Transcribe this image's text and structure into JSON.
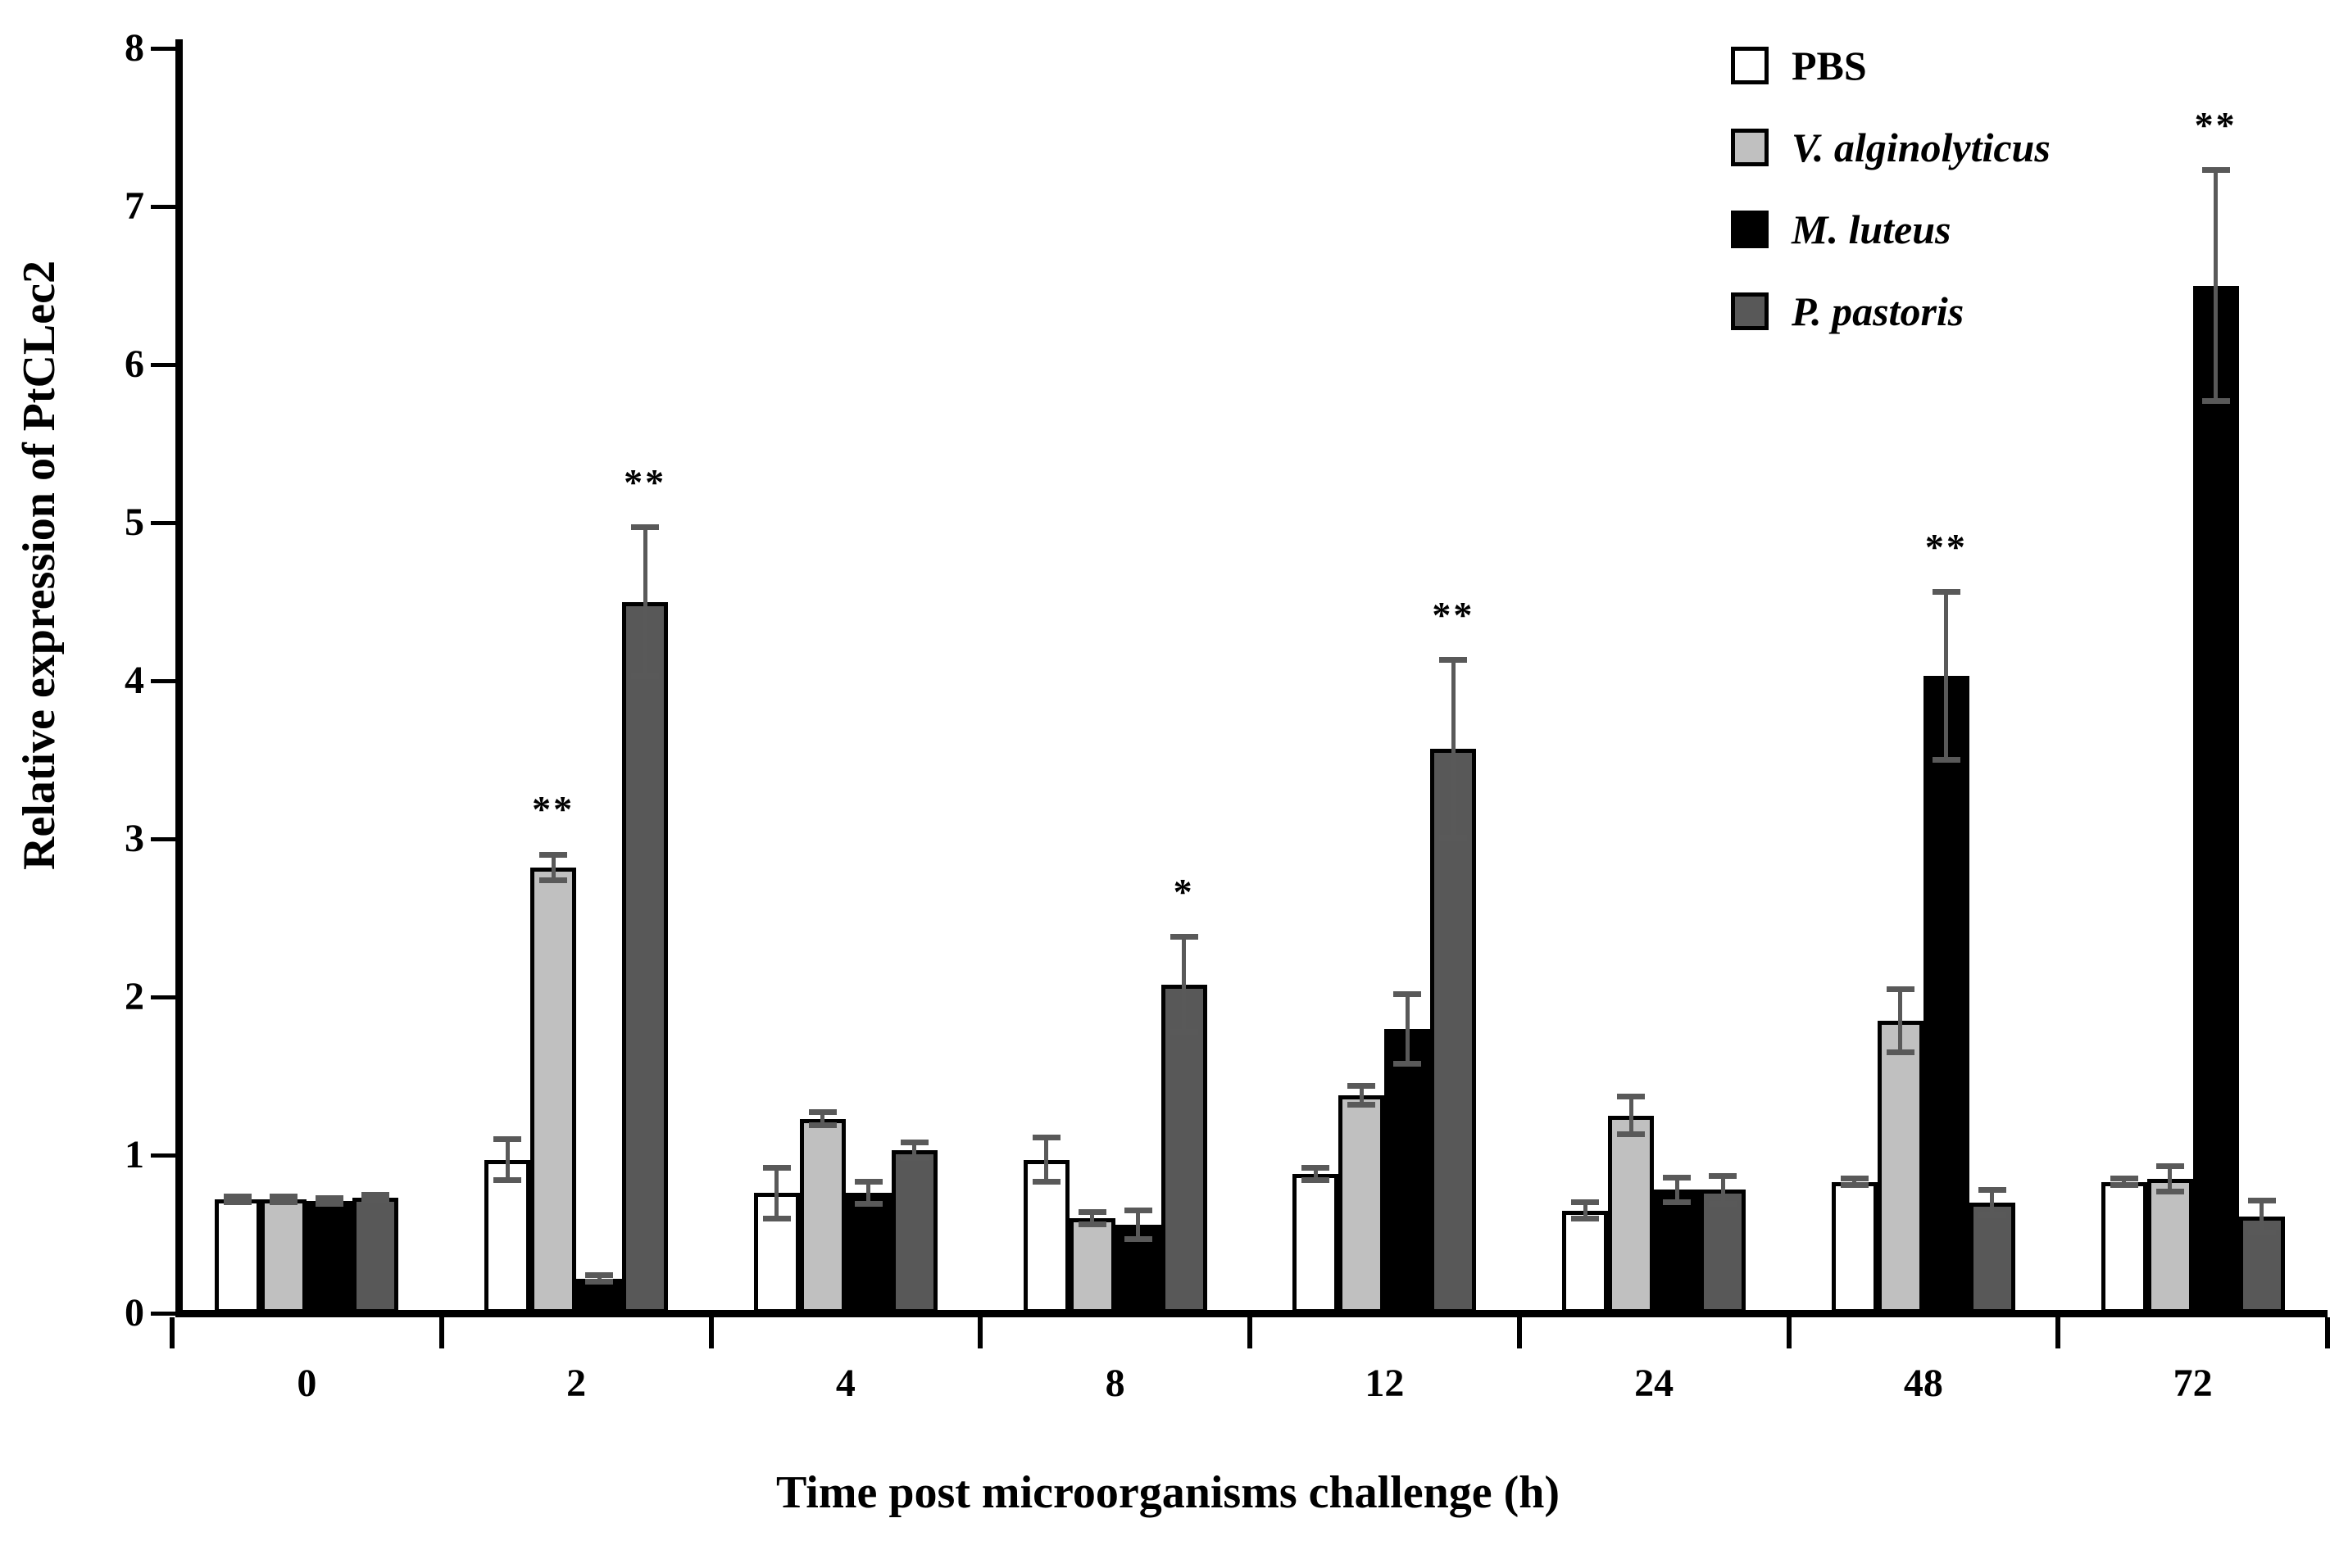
{
  "chart_data": {
    "type": "bar",
    "title": "",
    "xlabel": "Time post microorganisms challenge (h)",
    "ylabel": "Relative expression of PtCLec2",
    "categories": [
      "0",
      "2",
      "4",
      "8",
      "12",
      "24",
      "48",
      "72"
    ],
    "ylim": [
      0,
      8
    ],
    "ytick_step": 1,
    "grid": false,
    "legend_position": "top-right",
    "bar_border_color": "#000000",
    "error_bar_color": "#595959",
    "series": [
      {
        "name": "PBS",
        "italic": false,
        "color": "#ffffff",
        "values": [
          0.72,
          0.97,
          0.76,
          0.97,
          0.88,
          0.65,
          0.83,
          0.83
        ],
        "errors": [
          0.02,
          0.13,
          0.16,
          0.14,
          0.04,
          0.05,
          0.02,
          0.02
        ],
        "significance": [
          "",
          "",
          "",
          "",
          "",
          "",
          "",
          ""
        ]
      },
      {
        "name": "V. alginolyticus",
        "italic": true,
        "color": "#c0c0c0",
        "values": [
          0.72,
          2.82,
          1.23,
          0.6,
          1.38,
          1.25,
          1.85,
          0.85
        ],
        "errors": [
          0.02,
          0.08,
          0.04,
          0.04,
          0.06,
          0.12,
          0.2,
          0.08
        ],
        "significance": [
          "",
          "**",
          "",
          "",
          "",
          "",
          "",
          ""
        ]
      },
      {
        "name": "M. luteus",
        "italic": true,
        "color": "#000000",
        "values": [
          0.71,
          0.22,
          0.76,
          0.56,
          1.8,
          0.78,
          4.03,
          6.5
        ],
        "errors": [
          0.02,
          0.02,
          0.07,
          0.09,
          0.22,
          0.08,
          0.53,
          0.73
        ],
        "significance": [
          "",
          "",
          "",
          "",
          "",
          "",
          "**",
          "**"
        ]
      },
      {
        "name": "P. pastoris",
        "italic": true,
        "color": "#585858",
        "values": [
          0.73,
          4.5,
          1.03,
          2.08,
          3.57,
          0.78,
          0.7,
          0.61
        ],
        "errors": [
          0.02,
          0.47,
          0.05,
          0.3,
          0.56,
          0.09,
          0.08,
          0.1
        ],
        "significance": [
          "",
          "**",
          "",
          "*",
          "**",
          "",
          "",
          ""
        ]
      }
    ]
  }
}
